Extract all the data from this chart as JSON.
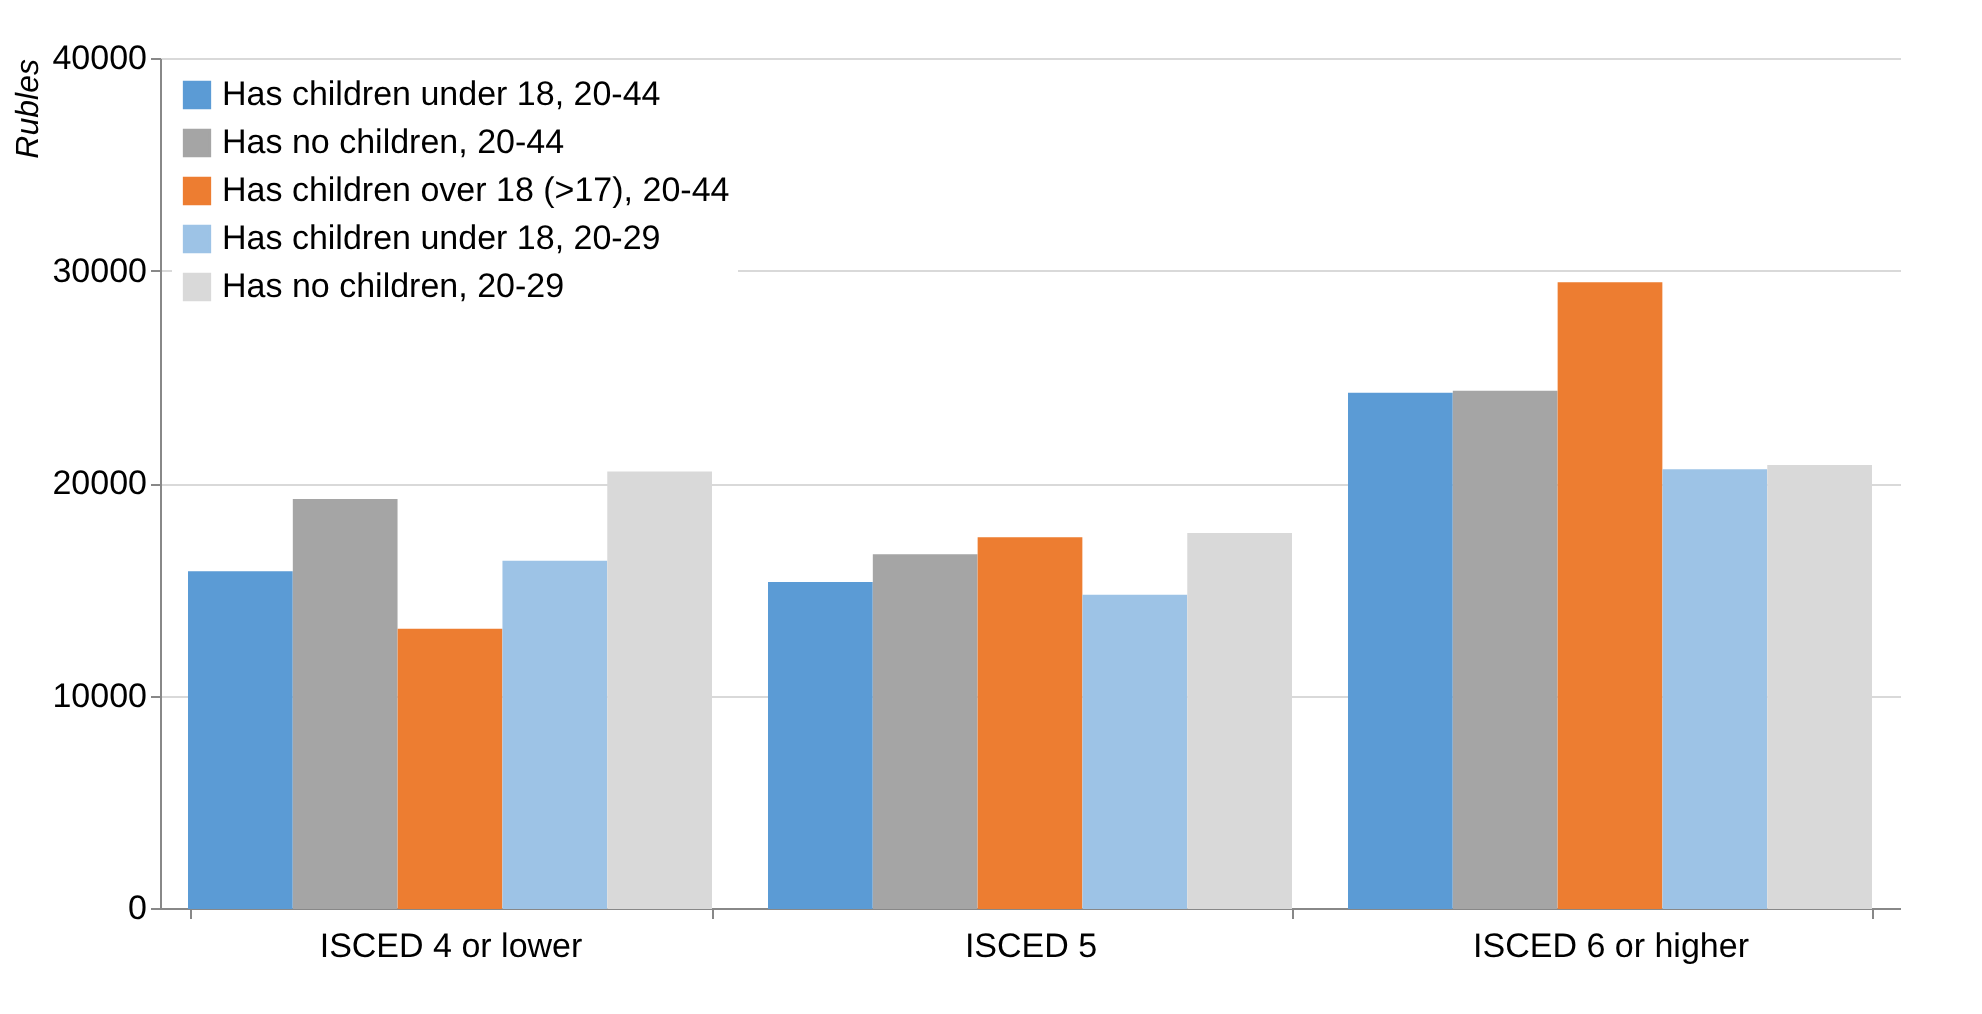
{
  "chart_data": {
    "type": "bar",
    "ylabel": "Rubles",
    "categories": [
      "ISCED 4 or lower",
      "ISCED 5",
      "ISCED 6 or higher"
    ],
    "series": [
      {
        "name": "Has children under 18, 20-44",
        "color": "#5b9bd5",
        "values": [
          15800,
          15300,
          24200
        ]
      },
      {
        "name": "Has no children, 20-44",
        "color": "#a5a5a5",
        "values": [
          19200,
          16600,
          24300
        ]
      },
      {
        "name": "Has children over 18 (>17), 20-44",
        "color": "#ed7d31",
        "values": [
          13100,
          17400,
          29400
        ]
      },
      {
        "name": "Has children under 18, 20-29",
        "color": "#9dc3e6",
        "values": [
          16300,
          14700,
          20600
        ]
      },
      {
        "name": "Has no children, 20-29",
        "color": "#d9d9d9",
        "values": [
          20500,
          17600,
          20800
        ]
      }
    ],
    "ylim": [
      0,
      40000
    ],
    "yticks": [
      0,
      10000,
      20000,
      30000,
      40000
    ],
    "grid": "y",
    "legend": "top left"
  }
}
